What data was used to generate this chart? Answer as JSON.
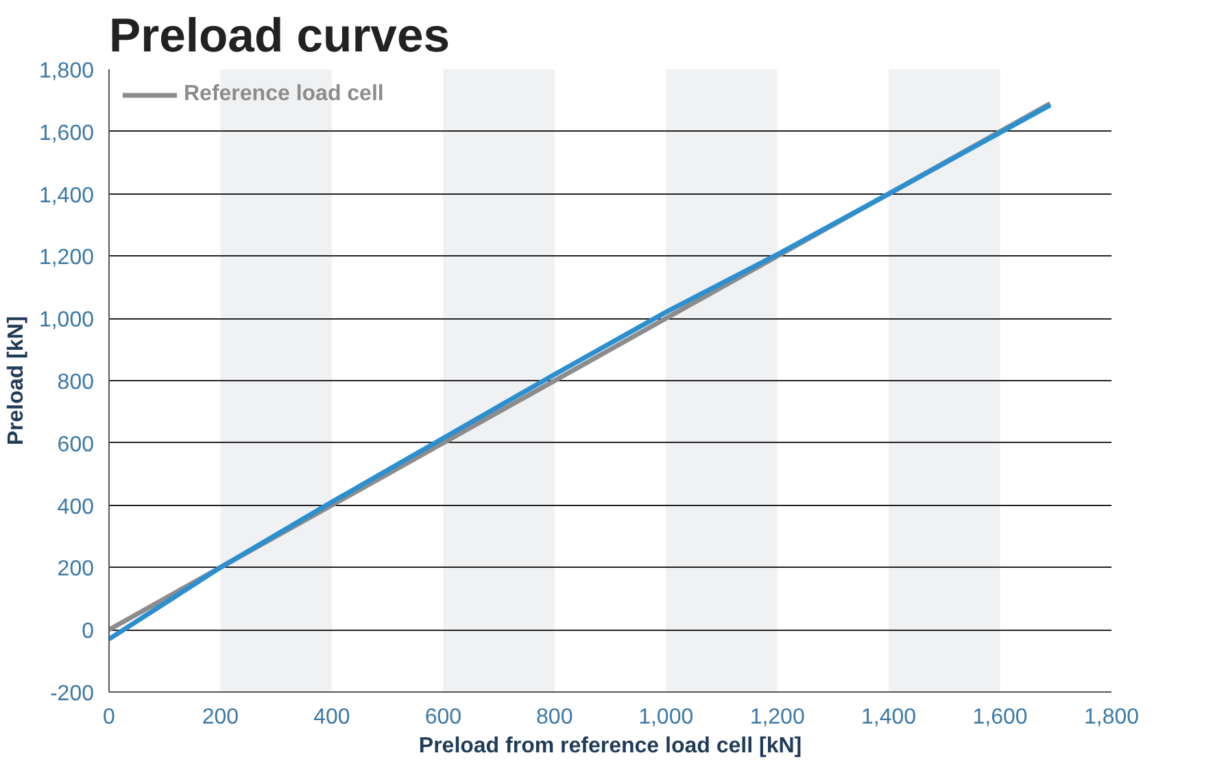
{
  "chart_data": {
    "type": "line",
    "title": "Preload curves",
    "xlabel": "Preload from reference load cell [kN]",
    "ylabel": "Preload [kN]",
    "xlim": [
      0,
      1800
    ],
    "ylim": [
      -200,
      1800
    ],
    "xticks": [
      0,
      200,
      400,
      600,
      800,
      {
        "value": 1000,
        "label": "1,000"
      },
      {
        "value": 1200,
        "label": "1,200"
      },
      {
        "value": 1400,
        "label": "1,400"
      },
      {
        "value": 1600,
        "label": "1,600"
      },
      {
        "value": 1800,
        "label": "1,800"
      }
    ],
    "yticks": [
      -200,
      0,
      200,
      400,
      600,
      800,
      {
        "value": 1000,
        "label": "1,000"
      },
      {
        "value": 1200,
        "label": "1,200"
      },
      {
        "value": 1400,
        "label": "1,400"
      },
      {
        "value": 1600,
        "label": "1,600"
      },
      {
        "value": 1800,
        "label": "1,800"
      }
    ],
    "grid": "y",
    "legend": "top left",
    "line_style": "solid",
    "bands": [
      {
        "axis": "x",
        "from": 200,
        "to": 400,
        "color": "#f0f1f3"
      },
      {
        "axis": "x",
        "from": 600,
        "to": 800,
        "color": "#f0f1f3"
      },
      {
        "axis": "x",
        "from": 1000,
        "to": 1200,
        "color": "#f0f1f3"
      },
      {
        "axis": "x",
        "from": 1400,
        "to": 1600,
        "color": "#f0f1f3"
      }
    ],
    "series": [
      {
        "name": "Reference load cell",
        "color": "#8c8c8c",
        "x": [
          0,
          1690
        ],
        "values": [
          0,
          1690
        ]
      },
      {
        "color": "#2b8fd0",
        "x": [
          0,
          200,
          400,
          800,
          1000,
          1200,
          1400,
          1690
        ],
        "values": [
          -30,
          200,
          410,
          820,
          1020,
          1205,
          1400,
          1685
        ]
      }
    ]
  }
}
